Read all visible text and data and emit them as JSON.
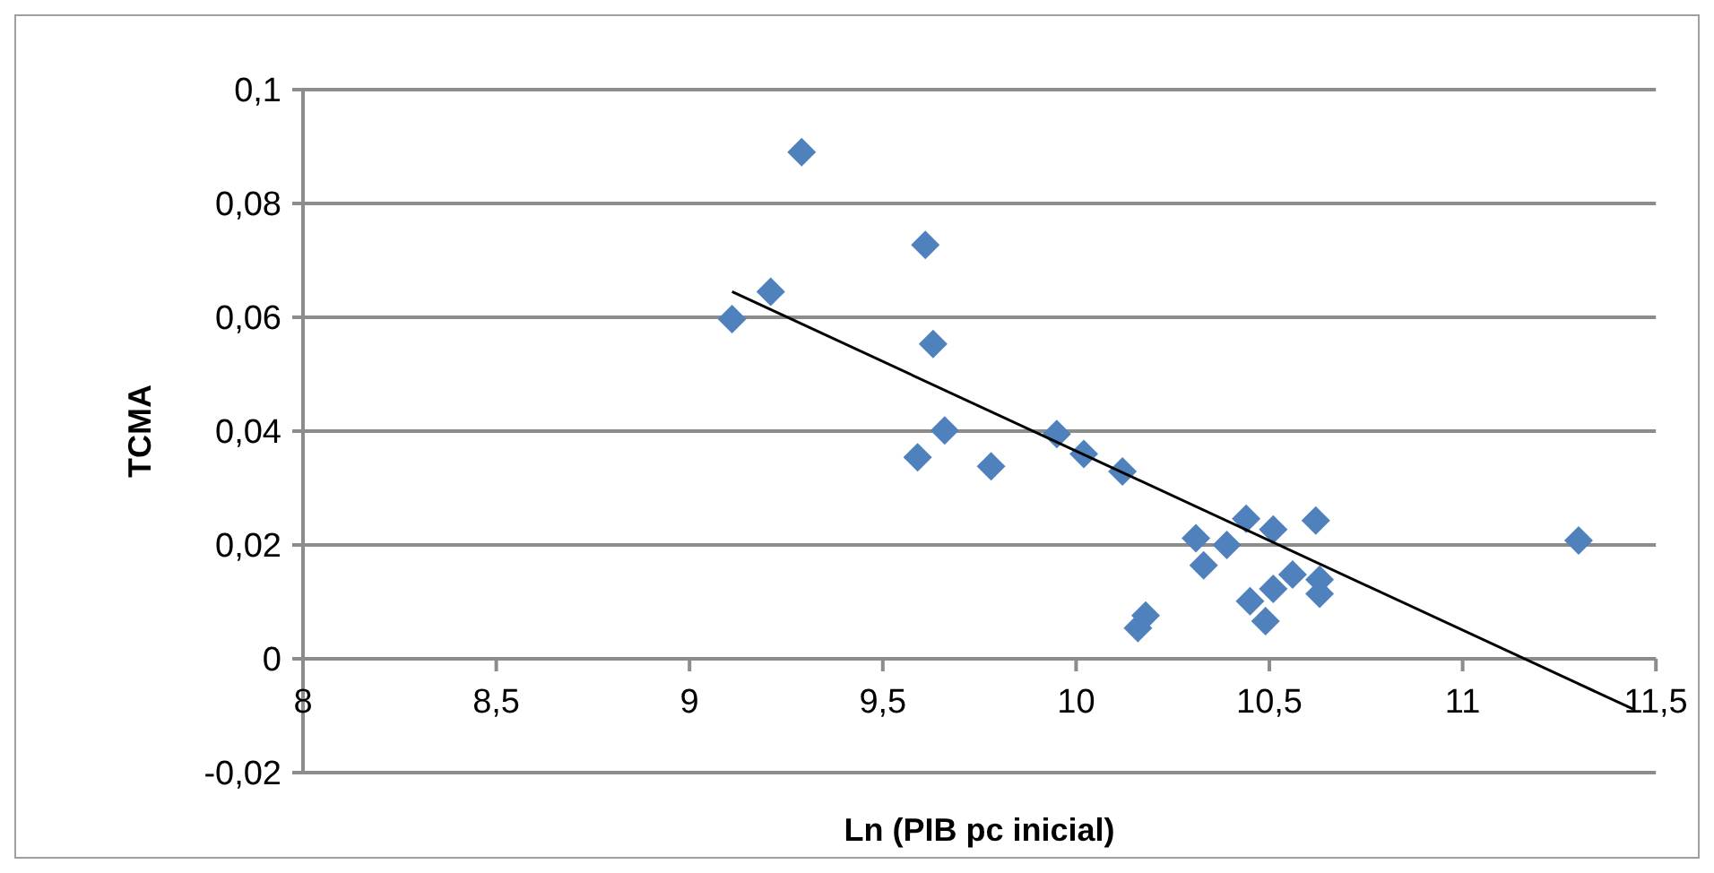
{
  "chart_data": {
    "type": "scatter",
    "xlabel": "Ln (PIB pc inicial)",
    "ylabel": "TCMA",
    "xlim": [
      8,
      11.5
    ],
    "xticks": [
      {
        "value": 8,
        "label": "8"
      },
      {
        "value": 8.5,
        "label": "8,5"
      },
      {
        "value": 9,
        "label": "9"
      },
      {
        "value": 9.5,
        "label": "9,5"
      },
      {
        "value": 10,
        "label": "10"
      },
      {
        "value": 10.5,
        "label": "10,5"
      },
      {
        "value": 11,
        "label": "11"
      },
      {
        "value": 11.5,
        "label": "11,5"
      }
    ],
    "ylim": [
      -0.02,
      0.1
    ],
    "yticks": [
      {
        "value": -0.02,
        "label": "-0,02"
      },
      {
        "value": 0,
        "label": "0"
      },
      {
        "value": 0.02,
        "label": "0,02"
      },
      {
        "value": 0.04,
        "label": "0,04"
      },
      {
        "value": 0.06,
        "label": "0,06"
      },
      {
        "value": 0.08,
        "label": "0,08"
      },
      {
        "value": 0.1,
        "label": "0,1"
      }
    ],
    "grid": "y",
    "marker": "diamond",
    "series": [
      {
        "color": "#4f81bd",
        "x": [
          9.11,
          9.21,
          9.29,
          9.61,
          9.63,
          9.66,
          9.59,
          9.78,
          9.95,
          10.02,
          10.12,
          10.31,
          10.33,
          10.39,
          10.44,
          10.51,
          10.62,
          10.16,
          10.18,
          10.45,
          10.49,
          10.51,
          10.56,
          10.63,
          10.63,
          11.3
        ],
        "values": [
          0.0597,
          0.0645,
          0.089,
          0.0727,
          0.0553,
          0.0401,
          0.0354,
          0.0338,
          0.0395,
          0.036,
          0.0329,
          0.0212,
          0.0164,
          0.02,
          0.0246,
          0.0227,
          0.0243,
          0.0054,
          0.0076,
          0.0101,
          0.0066,
          0.0123,
          0.0148,
          0.0139,
          0.0114,
          0.0208
        ]
      },
      {
        "type": "line",
        "color": "#000000",
        "x": [
          9.11,
          11.44
        ],
        "values": [
          0.0645,
          -0.0088
        ],
        "marker": "none",
        "line_style": "solid"
      }
    ]
  }
}
